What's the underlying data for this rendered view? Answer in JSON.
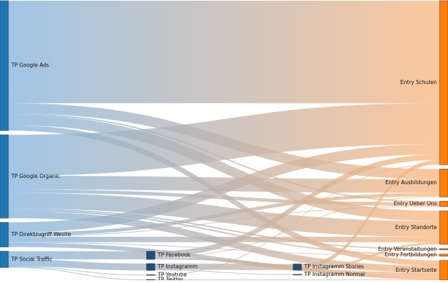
{
  "chart_data": {
    "type": "sankey",
    "link_colors": [
      "#7fb2e0",
      "#fdb57a"
    ],
    "link_opacity": 0.75,
    "nodes": [
      {
        "name": "TP Google Ads",
        "color": "#1f77b4"
      },
      {
        "name": "TP Google Organic",
        "color": "#1f77b4"
      },
      {
        "name": "TP Direktzugriff Wesite",
        "color": "#1f77b4"
      },
      {
        "name": "TP Social Traffic",
        "color": "#1f77b4"
      },
      {
        "name": "TP Youtube",
        "color": "#1f4e79"
      },
      {
        "name": "TP Instagramm",
        "color": "#1f4e79"
      },
      {
        "name": "TP Facebook",
        "color": "#1f4e79"
      },
      {
        "name": "TP Twitter",
        "color": "#1f4e79"
      },
      {
        "name": "TP Instagramm Stories",
        "color": "#1f4e79"
      },
      {
        "name": "TP Instagramm Normal",
        "color": "#1f4e79"
      },
      {
        "name": "Entry Schulen",
        "color": "#ff7f0e"
      },
      {
        "name": "Entry Ausbildungen",
        "color": "#ff7f0e"
      },
      {
        "name": "Entry Ueber Uns",
        "color": "#ff7f0e"
      },
      {
        "name": "Entry Standorte",
        "color": "#ff7f0e"
      },
      {
        "name": "Entry Veranstaltungen",
        "color": "#ff7f0e"
      },
      {
        "name": "Entry Fortbildungen",
        "color": "#ff7f0e"
      },
      {
        "name": "Entry Startseite",
        "color": "#ff7f0e"
      }
    ],
    "links": [
      {
        "source": 0,
        "target": 10,
        "value": 150
      },
      {
        "source": 0,
        "target": 11,
        "value": 15
      },
      {
        "source": 0,
        "target": 12,
        "value": 2
      },
      {
        "source": 0,
        "target": 13,
        "value": 15
      },
      {
        "source": 0,
        "target": 16,
        "value": 8
      },
      {
        "source": 1,
        "target": 10,
        "value": 60
      },
      {
        "source": 1,
        "target": 11,
        "value": 20
      },
      {
        "source": 1,
        "target": 12,
        "value": 5
      },
      {
        "source": 1,
        "target": 13,
        "value": 23
      },
      {
        "source": 1,
        "target": 14,
        "value": 2
      },
      {
        "source": 1,
        "target": 15,
        "value": 2
      },
      {
        "source": 1,
        "target": 16,
        "value": 10
      },
      {
        "source": 2,
        "target": 10,
        "value": 15
      },
      {
        "source": 2,
        "target": 11,
        "value": 5
      },
      {
        "source": 2,
        "target": 12,
        "value": 1
      },
      {
        "source": 2,
        "target": 13,
        "value": 8
      },
      {
        "source": 2,
        "target": 15,
        "value": 1
      },
      {
        "source": 2,
        "target": 16,
        "value": 6
      },
      {
        "source": 3,
        "target": 4,
        "value": 1
      },
      {
        "source": 3,
        "target": 5,
        "value": 10
      },
      {
        "source": 3,
        "target": 6,
        "value": 12
      },
      {
        "source": 3,
        "target": 7,
        "value": 1
      },
      {
        "source": 4,
        "target": 10,
        "value": 1
      },
      {
        "source": 5,
        "target": 8,
        "value": 9
      },
      {
        "source": 5,
        "target": 9,
        "value": 1
      },
      {
        "source": 6,
        "target": 10,
        "value": 8
      },
      {
        "source": 6,
        "target": 11,
        "value": 1
      },
      {
        "source": 6,
        "target": 16,
        "value": 3
      },
      {
        "source": 7,
        "target": 16,
        "value": 1
      },
      {
        "source": 8,
        "target": 10,
        "value": 6
      },
      {
        "source": 8,
        "target": 13,
        "value": 3
      },
      {
        "source": 9,
        "target": 16,
        "value": 1
      }
    ]
  }
}
